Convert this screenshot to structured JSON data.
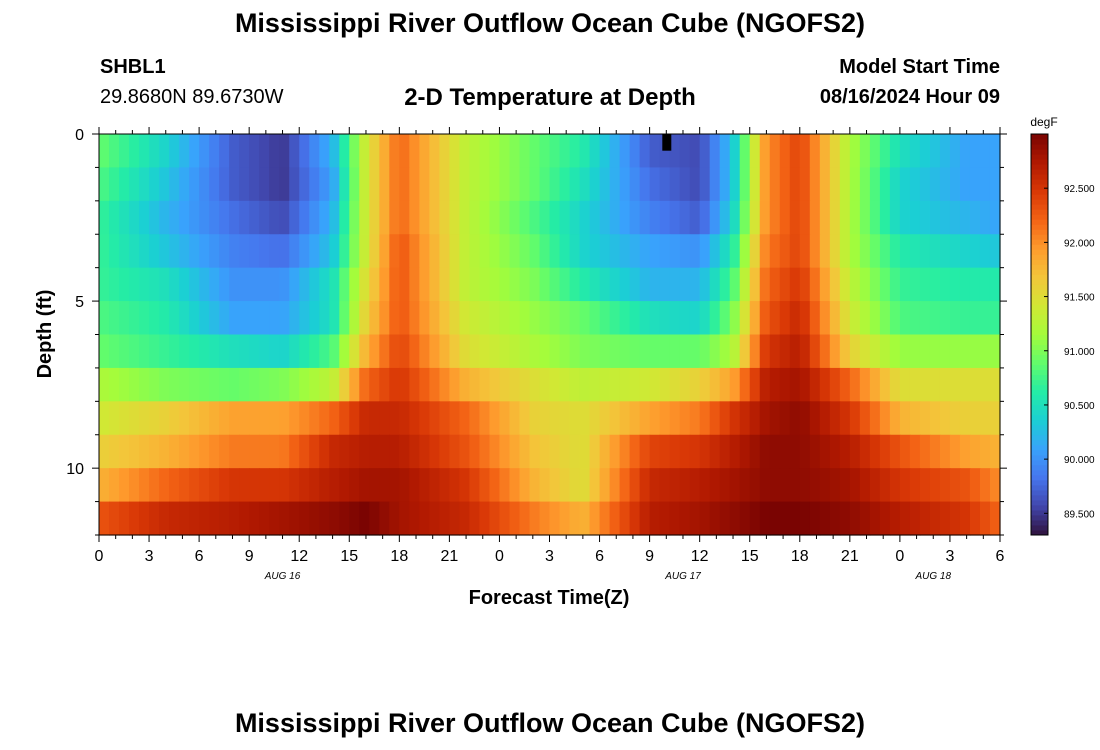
{
  "header": {
    "title": "Mississippi River Outflow Ocean Cube (NGOFS2)",
    "station_id": "SHBL1",
    "station_coords": "29.8680N  89.6730W",
    "plot_title": "2-D Temperature at Depth",
    "model_start_label": "Model Start Time",
    "model_start_value": "08/16/2024 Hour 09"
  },
  "footer": {
    "title": "Mississippi River Outflow Ocean Cube (NGOFS2)"
  },
  "chart_data": {
    "type": "heatmap",
    "title": "2-D Temperature at Depth",
    "xlabel": "Forecast Time(Z)",
    "ylabel": "Depth (ft)",
    "x_tick_labels": [
      "0",
      "3",
      "6",
      "9",
      "12",
      "15",
      "18",
      "21",
      "0",
      "3",
      "6",
      "9",
      "12",
      "15",
      "18",
      "21",
      "0",
      "3",
      "6"
    ],
    "x_hours_range": [
      0,
      54
    ],
    "date_labels": [
      {
        "text": "AUG 16",
        "hour": 11
      },
      {
        "text": "AUG 17",
        "hour": 35
      },
      {
        "text": "AUG 18",
        "hour": 50
      }
    ],
    "y_tick_labels": [
      "0",
      "5",
      "10"
    ],
    "y_range_ft": [
      0,
      12
    ],
    "colorbar": {
      "unit": "degF",
      "range": [
        89.3,
        93.0
      ],
      "tick_labels": [
        "89.500",
        "90.000",
        "90.500",
        "91.000",
        "91.500",
        "92.000",
        "92.500"
      ],
      "tick_values": [
        89.5,
        90.0,
        90.5,
        91.0,
        91.5,
        92.0,
        92.5
      ],
      "colormap": [
        "#30123b",
        "#4145ab",
        "#4675ed",
        "#39a2fc",
        "#1bcfd4",
        "#24eca6",
        "#61fc6c",
        "#a4fc3b",
        "#d1e834",
        "#f3c63a",
        "#fe9b2d",
        "#f36315",
        "#d93806",
        "#b11901",
        "#7a0402"
      ]
    },
    "depth_layers_ft": [
      0.5,
      1.5,
      2.5,
      3.5,
      4.5,
      5.5,
      6.5,
      7.5,
      8.5,
      9.5,
      10.5,
      11.5
    ],
    "time_nodes_h": [
      0,
      4,
      8,
      11,
      14,
      16,
      18,
      22,
      26,
      29,
      33,
      36,
      38,
      40,
      42,
      45,
      48,
      52,
      54
    ],
    "temperature_degF": [
      [
        90.9,
        90.4,
        89.7,
        89.5,
        90.2,
        91.4,
        92.2,
        91.3,
        90.9,
        90.6,
        89.7,
        89.6,
        90.3,
        92.0,
        92.4,
        91.2,
        90.5,
        90.1,
        90.1
      ],
      [
        90.8,
        90.3,
        89.7,
        89.5,
        90.1,
        91.4,
        92.2,
        91.3,
        90.9,
        90.5,
        89.8,
        89.6,
        90.3,
        92.0,
        92.4,
        91.2,
        90.4,
        90.1,
        90.1
      ],
      [
        90.7,
        90.2,
        89.8,
        89.6,
        90.2,
        91.4,
        92.2,
        91.3,
        90.8,
        90.4,
        89.9,
        89.7,
        90.4,
        92.0,
        92.4,
        91.2,
        90.4,
        90.2,
        90.1
      ],
      [
        90.7,
        90.3,
        89.9,
        89.8,
        90.3,
        91.4,
        92.3,
        91.3,
        90.9,
        90.4,
        90.1,
        90.0,
        90.6,
        92.1,
        92.4,
        91.2,
        90.6,
        90.4,
        90.3
      ],
      [
        90.7,
        90.5,
        90.0,
        90.0,
        90.5,
        91.5,
        92.3,
        91.3,
        91.0,
        90.6,
        90.2,
        90.2,
        90.8,
        92.2,
        92.5,
        91.3,
        90.7,
        90.6,
        90.6
      ],
      [
        90.8,
        90.6,
        90.1,
        90.1,
        90.5,
        91.6,
        92.3,
        91.4,
        91.1,
        90.9,
        90.5,
        90.4,
        91.0,
        92.3,
        92.6,
        91.4,
        90.8,
        90.7,
        90.7
      ],
      [
        90.9,
        90.7,
        90.5,
        90.4,
        90.8,
        91.8,
        92.4,
        91.5,
        91.2,
        91.0,
        90.9,
        90.9,
        91.2,
        92.5,
        92.7,
        91.6,
        91.1,
        91.1,
        91.1
      ],
      [
        91.2,
        91.0,
        90.9,
        91.0,
        91.3,
        92.2,
        92.5,
        91.8,
        91.5,
        91.3,
        91.4,
        91.6,
        91.9,
        92.7,
        92.8,
        92.2,
        91.5,
        91.5,
        91.5
      ],
      [
        91.4,
        91.6,
        91.9,
        91.9,
        92.2,
        92.6,
        92.6,
        92.2,
        91.6,
        91.5,
        91.9,
        92.1,
        92.5,
        92.8,
        92.9,
        92.5,
        91.8,
        91.6,
        91.6
      ],
      [
        91.6,
        91.8,
        92.1,
        92.1,
        92.6,
        92.7,
        92.7,
        92.3,
        91.7,
        91.5,
        92.4,
        92.5,
        92.7,
        92.9,
        92.9,
        92.7,
        92.3,
        91.9,
        91.8
      ],
      [
        91.8,
        92.2,
        92.5,
        92.5,
        92.7,
        92.8,
        92.8,
        92.5,
        91.8,
        91.5,
        92.6,
        92.7,
        92.8,
        92.9,
        92.9,
        92.8,
        92.5,
        92.3,
        92.0
      ],
      [
        92.3,
        92.6,
        92.7,
        92.8,
        92.9,
        93.0,
        92.8,
        92.6,
        92.1,
        91.8,
        92.7,
        92.8,
        92.9,
        93.0,
        93.0,
        92.9,
        92.7,
        92.5,
        92.2
      ]
    ],
    "annotation": {
      "type": "marker",
      "hour": 34,
      "depth_ft": [
        0,
        0.5
      ],
      "color": "#000000"
    }
  }
}
